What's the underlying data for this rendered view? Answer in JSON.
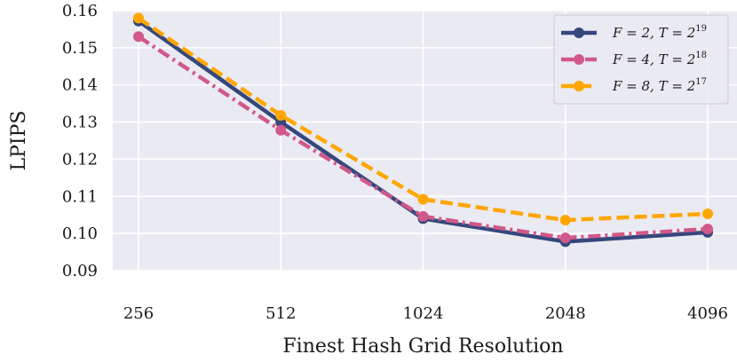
{
  "chart_data": {
    "type": "line",
    "xlabel": "Finest Hash Grid Resolution",
    "ylabel": "LPIPS",
    "categories": [
      "256",
      "512",
      "1024",
      "2048",
      "4096"
    ],
    "yticks": [
      "0.09",
      "0.10",
      "0.11",
      "0.12",
      "0.13",
      "0.14",
      "0.15",
      "0.16"
    ],
    "ylim": [
      0.09,
      0.16
    ],
    "grid": true,
    "legend_position": "top-right",
    "series": [
      {
        "name": "F = 2, T = 2^19",
        "label": {
          "f": "2",
          "t_exp": "19"
        },
        "values": [
          0.1572,
          0.13,
          0.104,
          0.0978,
          0.1003
        ],
        "color": "#35477d",
        "dash": "solid"
      },
      {
        "name": "F = 4, T = 2^18",
        "label": {
          "f": "4",
          "t_exp": "18"
        },
        "values": [
          0.153,
          0.1278,
          0.1046,
          0.0988,
          0.1012
        ],
        "color": "#d1588a",
        "dash": "dashdot"
      },
      {
        "name": "F = 8, T = 2^17",
        "label": {
          "f": "8",
          "t_exp": "17"
        },
        "values": [
          0.158,
          0.1318,
          0.1092,
          0.1036,
          0.1053
        ],
        "color": "#ffa600",
        "dash": "dashed"
      }
    ],
    "colors": {
      "plot_background": "#eaeaf2",
      "grid": "#ffffff"
    }
  }
}
